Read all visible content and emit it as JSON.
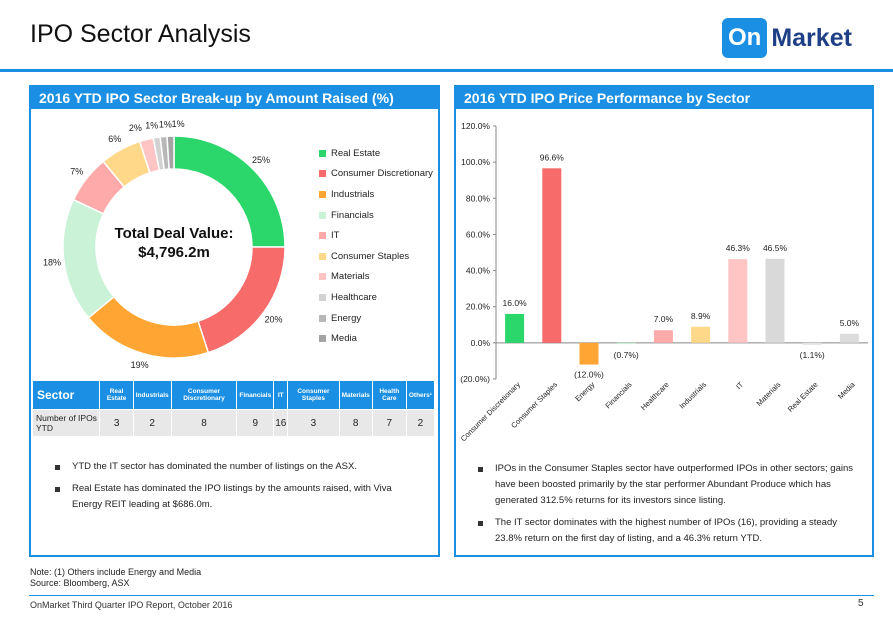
{
  "page": {
    "title": "IPO Sector Analysis",
    "logo_on": "On",
    "logo_market": "Market",
    "note": "Note: (1) Others include Energy and Media",
    "source": "Source: Bloomberg, ASX",
    "footer": "OnMarket Third Quarter IPO Report, October 2016",
    "page_number": "5"
  },
  "left_panel": {
    "header": "2016 YTD IPO Sector Break-up by Amount Raised (%)",
    "total_label": "Total Deal Value:",
    "total_value": "$4,796.2m",
    "table": {
      "headers": [
        "Sector",
        "Real Estate",
        "Industrials",
        "Consumer Discretionary",
        "Financials",
        "IT",
        "Consumer Staples",
        "Materials",
        "Health Care",
        "Others¹"
      ],
      "row_label": "Number of IPOs YTD",
      "values": [
        "3",
        "2",
        "8",
        "9",
        "16",
        "3",
        "8",
        "7",
        "2"
      ]
    },
    "bullets": [
      "YTD the IT sector has dominated the number of listings on the ASX.",
      "Real Estate has dominated the IPO listings by the amounts raised, with Viva Energy REIT leading at $686.0m."
    ]
  },
  "right_panel": {
    "header": "2016 YTD IPO Price Performance by Sector",
    "bullets": [
      "IPOs in the Consumer Staples sector have outperformed IPOs in other sectors; gains have been boosted primarily by the star performer Abundant Produce which has generated 312.5% returns for its investors since listing.",
      "The IT sector dominates with the highest number of IPOs (16), providing a steady 23.8% return on the first day of listing, and a 46.3% return YTD."
    ]
  },
  "chart_data": [
    {
      "type": "pie",
      "variant": "donut",
      "legend_position": "right",
      "categories": [
        "Real Estate",
        "Consumer Discretionary",
        "Industrials",
        "Financials",
        "IT",
        "Consumer Staples",
        "Materials",
        "Healthcare",
        "Energy",
        "Media"
      ],
      "values": [
        25,
        20,
        19,
        18,
        7,
        6,
        2,
        1,
        1,
        1
      ],
      "data_labels": [
        "25%",
        "20%",
        "19%",
        "18%",
        "7%",
        "6%",
        "2%",
        "1%",
        "1%",
        "1%"
      ],
      "colors": [
        "#2bd66b",
        "#f76b6b",
        "#ffa533",
        "#c9f2d7",
        "#ffaaaa",
        "#ffd88a",
        "#ffc4c4",
        "#d2d2d2",
        "#b8b8b8",
        "#a5a5a5"
      ]
    },
    {
      "type": "bar",
      "categories": [
        "Consumer Discretionary",
        "Consumer Staples",
        "Energy",
        "Financials",
        "Healthcare",
        "Industrials",
        "IT",
        "Materials",
        "Real Estate",
        "Media"
      ],
      "values": [
        16.0,
        96.6,
        -12.0,
        -0.7,
        7.0,
        8.9,
        46.3,
        46.5,
        -1.1,
        5.0
      ],
      "data_labels": [
        "16.0%",
        "96.6%",
        "(12.0%)",
        "(0.7%)",
        "7.0%",
        "8.9%",
        "46.3%",
        "46.5%",
        "(1.1%)",
        "5.0%"
      ],
      "colors": [
        "#2bd66b",
        "#f76b6b",
        "#ffa533",
        "#c9f2d7",
        "#ffaaaa",
        "#ffd88a",
        "#ffc4c4",
        "#d9d9d9",
        "#e4e4e4",
        "#dcdcdc"
      ],
      "ylim": [
        -20,
        120
      ],
      "yticks": [
        "(20.0%)",
        "0.0%",
        "20.0%",
        "40.0%",
        "60.0%",
        "80.0%",
        "100.0%",
        "120.0%"
      ],
      "ytick_values": [
        -20,
        0,
        20,
        40,
        60,
        80,
        100,
        120
      ],
      "grid": false
    }
  ]
}
